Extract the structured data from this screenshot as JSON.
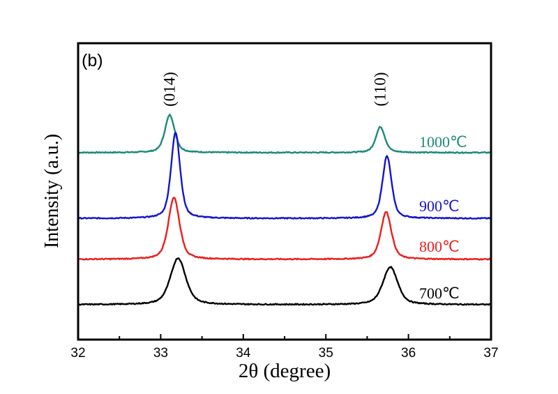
{
  "chart_data": {
    "type": "line",
    "panel_label": "(b)",
    "xlabel": "2θ (degree)",
    "ylabel": "Intensity (a.u.)",
    "xlim": [
      32,
      37
    ],
    "ylim": [
      0,
      100
    ],
    "x_ticks": [
      "32",
      "33",
      "34",
      "35",
      "36",
      "37"
    ],
    "x_minor_step": 0.5,
    "y_ticks_shown": false,
    "grid": false,
    "legend": "inline labels at right of each curve",
    "peak_annotations": [
      {
        "label": "(014)",
        "x": 33.11
      },
      {
        "label": "(110)",
        "x": 35.66
      }
    ],
    "series": [
      {
        "name": "1000℃",
        "color": "#1a8a7a",
        "baseline": 63.1,
        "peaks": [
          {
            "x": 33.11,
            "height": 75.8,
            "fwhm": 0.14
          },
          {
            "x": 35.66,
            "height": 71.8,
            "fwhm": 0.13
          }
        ]
      },
      {
        "name": "900℃",
        "color": "#1414d2",
        "baseline": 40.9,
        "peaks": [
          {
            "x": 33.18,
            "height": 69.9,
            "fwhm": 0.13
          },
          {
            "x": 35.74,
            "height": 61.9,
            "fwhm": 0.13
          }
        ]
      },
      {
        "name": "800℃",
        "color": "#ee1c1c",
        "baseline": 27.1,
        "peaks": [
          {
            "x": 33.16,
            "height": 48.0,
            "fwhm": 0.16
          },
          {
            "x": 35.73,
            "height": 43.1,
            "fwhm": 0.15
          }
        ]
      },
      {
        "name": "700℃",
        "color": "#000000",
        "baseline": 11.8,
        "peaks": [
          {
            "x": 33.21,
            "height": 27.5,
            "fwhm": 0.22
          },
          {
            "x": 35.78,
            "height": 24.5,
            "fwhm": 0.21
          }
        ]
      }
    ]
  }
}
